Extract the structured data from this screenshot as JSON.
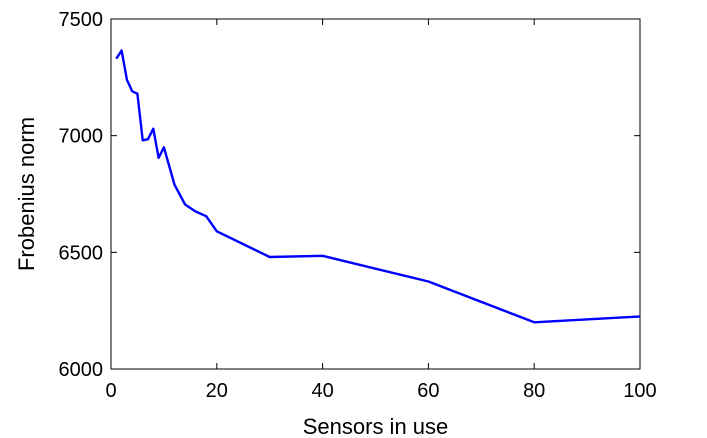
{
  "chart_data": {
    "type": "line",
    "title": "",
    "xlabel": "Sensors in use",
    "ylabel": "Frobenius norm",
    "xlim": [
      0,
      100
    ],
    "ylim": [
      6000,
      7500
    ],
    "xticks": [
      0,
      20,
      40,
      60,
      80,
      100
    ],
    "yticks": [
      6000,
      6500,
      7000,
      7500
    ],
    "xtick_labels": [
      "0",
      "20",
      "40",
      "60",
      "80",
      "100"
    ],
    "ytick_labels": [
      "6000",
      "6500",
      "7000",
      "7500"
    ],
    "grid": false,
    "legend": "none",
    "series": [
      {
        "color": "#0000ff",
        "x": [
          1,
          2,
          3,
          4,
          5,
          6,
          7,
          8,
          9,
          10,
          12,
          14,
          16,
          18,
          20,
          30,
          40,
          60,
          80,
          100
        ],
        "y": [
          7330,
          7365,
          7240,
          7190,
          7180,
          6980,
          6985,
          7030,
          6905,
          6950,
          6790,
          6705,
          6675,
          6655,
          6590,
          6480,
          6485,
          6375,
          6200,
          6225
        ]
      }
    ]
  }
}
